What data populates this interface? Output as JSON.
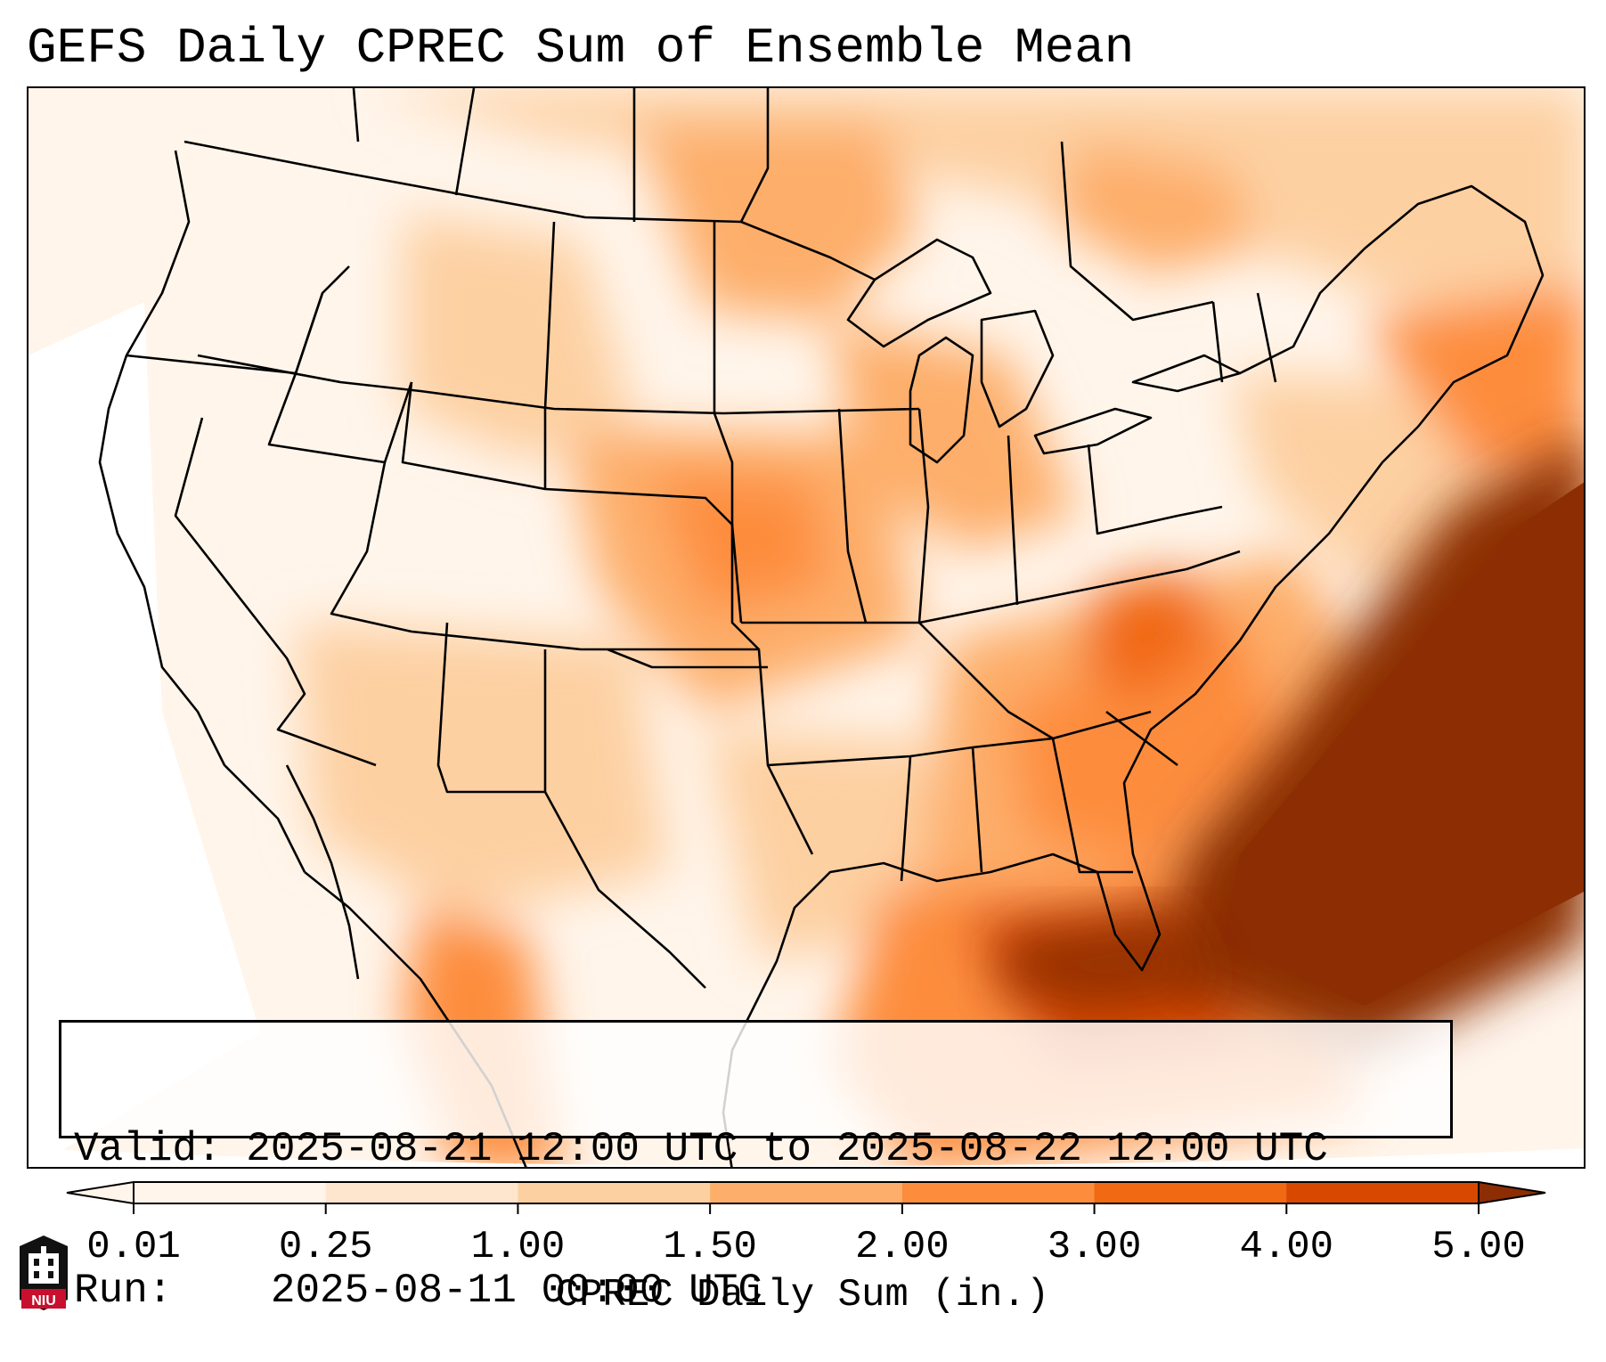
{
  "title": "GEFS Daily CPREC Sum of Ensemble Mean",
  "info": {
    "valid_label": "Valid:",
    "valid_value": "2025-08-21 12:00 UTC to 2025-08-22 12:00 UTC",
    "run_label": "Run:",
    "run_value": "2025-08-11 00:00 UTC"
  },
  "colorbar": {
    "label": "CPREC Daily Sum (in.)",
    "ticks": [
      "0.01",
      "0.25",
      "1.00",
      "1.50",
      "2.00",
      "3.00",
      "4.00",
      "5.00"
    ],
    "colors": [
      "#fff5eb",
      "#fee6ce",
      "#fdd0a2",
      "#fdae6b",
      "#fd8d3c",
      "#f16913",
      "#d94801",
      "#8c2d04"
    ],
    "extend": "both"
  },
  "legend_colors": {
    "light": "#fff5eb",
    "pale": "#fee6ce",
    "peach": "#fdd0a2",
    "orange": "#fdae6b",
    "deep_orange": "#fd8d3c",
    "burnt": "#f16913",
    "dark": "#d94801",
    "darkest": "#8c2d04"
  },
  "logo": {
    "icon": "university-seal-icon",
    "text": "NIU",
    "color": "#c8102e"
  }
}
